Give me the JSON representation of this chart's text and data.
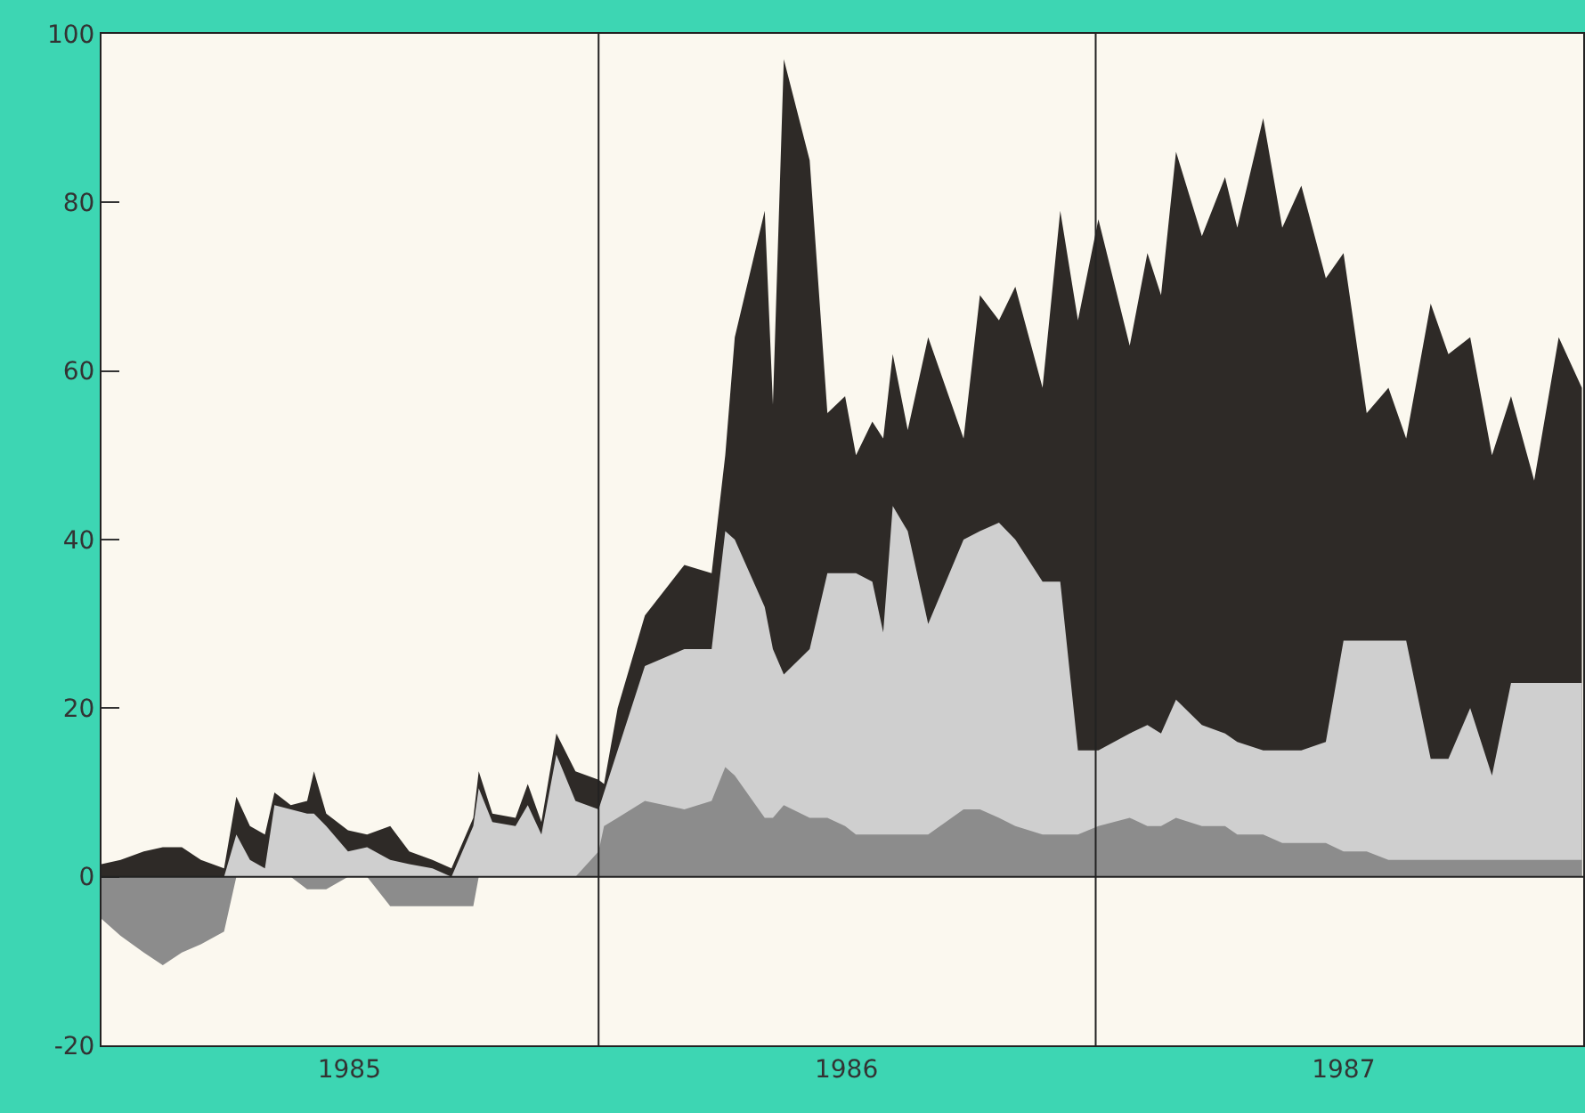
{
  "chart_data": {
    "type": "area",
    "grid": false,
    "x": [
      "1985-01-01",
      "1985-01-15",
      "1985-02-01",
      "1985-02-15",
      "1985-03-01",
      "1985-03-15",
      "1985-04-01",
      "1985-04-10",
      "1985-04-20",
      "1985-05-01",
      "1985-05-08",
      "1985-05-20",
      "1985-06-01",
      "1985-06-06",
      "1985-06-15",
      "1985-07-01",
      "1985-07-15",
      "1985-08-01",
      "1985-08-15",
      "1985-09-01",
      "1985-09-15",
      "1985-10-01",
      "1985-10-05",
      "1985-10-15",
      "1985-11-01",
      "1985-11-10",
      "1985-11-20",
      "1985-12-01",
      "1985-12-15",
      "1986-01-01",
      "1986-01-05",
      "1986-01-15",
      "1986-02-04",
      "1986-03-05",
      "1986-03-25",
      "1986-04-04",
      "1986-04-11",
      "1986-05-03",
      "1986-05-09",
      "1986-05-17",
      "1986-06-05",
      "1986-06-18",
      "1986-07-01",
      "1986-07-09",
      "1986-07-21",
      "1986-07-29",
      "1986-08-05",
      "1986-08-16",
      "1986-08-31",
      "1986-09-26",
      "1986-10-08",
      "1986-10-22",
      "1986-11-03",
      "1986-11-23",
      "1986-12-06",
      "1986-12-19",
      "1987-01-03",
      "1987-01-26",
      "1987-02-08",
      "1987-02-18",
      "1987-03-01",
      "1987-03-20",
      "1987-04-06",
      "1987-04-15",
      "1987-05-04",
      "1987-05-18",
      "1987-06-01",
      "1987-06-19",
      "1987-07-02",
      "1987-07-19",
      "1987-08-04",
      "1987-08-17",
      "1987-09-04",
      "1987-09-17",
      "1987-10-03",
      "1987-10-19",
      "1987-11-02",
      "1987-11-19",
      "1987-12-07",
      "1987-12-24"
    ],
    "series": [
      {
        "color": "#2e2a27",
        "values": [
          1.5,
          2,
          3,
          3.5,
          3.5,
          2,
          1,
          9.5,
          6,
          5,
          10,
          8.5,
          9,
          12.5,
          7.5,
          5.5,
          5,
          6,
          3,
          2,
          1,
          7,
          12.5,
          7.5,
          7,
          11,
          6.5,
          17,
          12.5,
          11.5,
          11,
          20,
          31,
          37,
          36,
          50,
          64,
          79,
          56,
          97,
          85,
          55,
          57,
          50,
          54,
          52,
          62,
          53,
          64,
          52,
          69,
          66,
          70,
          58,
          79,
          66,
          78,
          63,
          74,
          69,
          86,
          76,
          83,
          77,
          90,
          77,
          82,
          71,
          74,
          55,
          58,
          52,
          68,
          62,
          64,
          50,
          57,
          47,
          64,
          58
        ]
      },
      {
        "color": "#cfcfcf",
        "values": [
          0,
          0,
          0,
          0,
          0,
          0,
          0,
          5,
          2,
          1,
          8.5,
          8,
          7.5,
          7.5,
          6,
          3,
          3.5,
          2,
          1.5,
          1,
          0,
          6,
          10.5,
          6.5,
          6,
          8.5,
          5,
          14.5,
          9,
          8,
          10,
          15,
          25,
          27,
          27,
          41,
          40,
          32,
          27,
          24,
          27,
          36,
          36,
          36,
          35,
          29,
          44,
          41,
          30,
          40,
          41,
          42,
          40,
          35,
          35,
          15,
          15,
          17,
          18,
          17,
          21,
          18,
          17,
          16,
          15,
          15,
          15,
          16,
          28,
          28,
          28,
          28,
          14,
          14,
          20,
          12,
          23,
          23,
          23,
          23
        ]
      },
      {
        "color": "#8c8c8c",
        "values": [
          -5,
          -7,
          -9,
          -10.5,
          -9,
          -8,
          -6.5,
          0,
          0,
          0,
          0,
          0,
          -1.5,
          -1.5,
          -1.5,
          0,
          0,
          -3.5,
          -3.5,
          -3.5,
          -3.5,
          -3.5,
          0,
          0,
          0,
          0,
          0,
          0,
          0,
          3,
          6,
          7,
          9,
          8,
          9,
          13,
          12,
          7,
          7,
          8.5,
          7,
          7,
          6,
          5,
          5,
          5,
          5,
          5,
          5,
          8,
          8,
          7,
          6,
          5,
          5,
          5,
          6,
          7,
          6,
          6,
          7,
          6,
          6,
          5,
          5,
          4,
          4,
          4,
          3,
          3,
          2,
          2,
          2,
          2,
          2,
          2,
          2,
          2,
          2,
          2
        ]
      }
    ],
    "xlim": [
      "1985-01-01",
      "1987-12-25"
    ],
    "xticks": [
      {
        "value": "1985-07-02",
        "label": "1985"
      },
      {
        "value": "1986-07-02",
        "label": "1986"
      },
      {
        "value": "1987-07-02",
        "label": "1987"
      }
    ],
    "ylim": [
      -20,
      100
    ],
    "yticks": [
      -20,
      0,
      20,
      40,
      60,
      80,
      100
    ],
    "ref_lines": [
      {
        "axis": "y",
        "value": 0,
        "color": "#222222"
      },
      {
        "axis": "x",
        "value": "1986-01-01",
        "color": "#222222"
      },
      {
        "axis": "x",
        "value": "1987-01-01",
        "color": "#222222"
      }
    ]
  }
}
